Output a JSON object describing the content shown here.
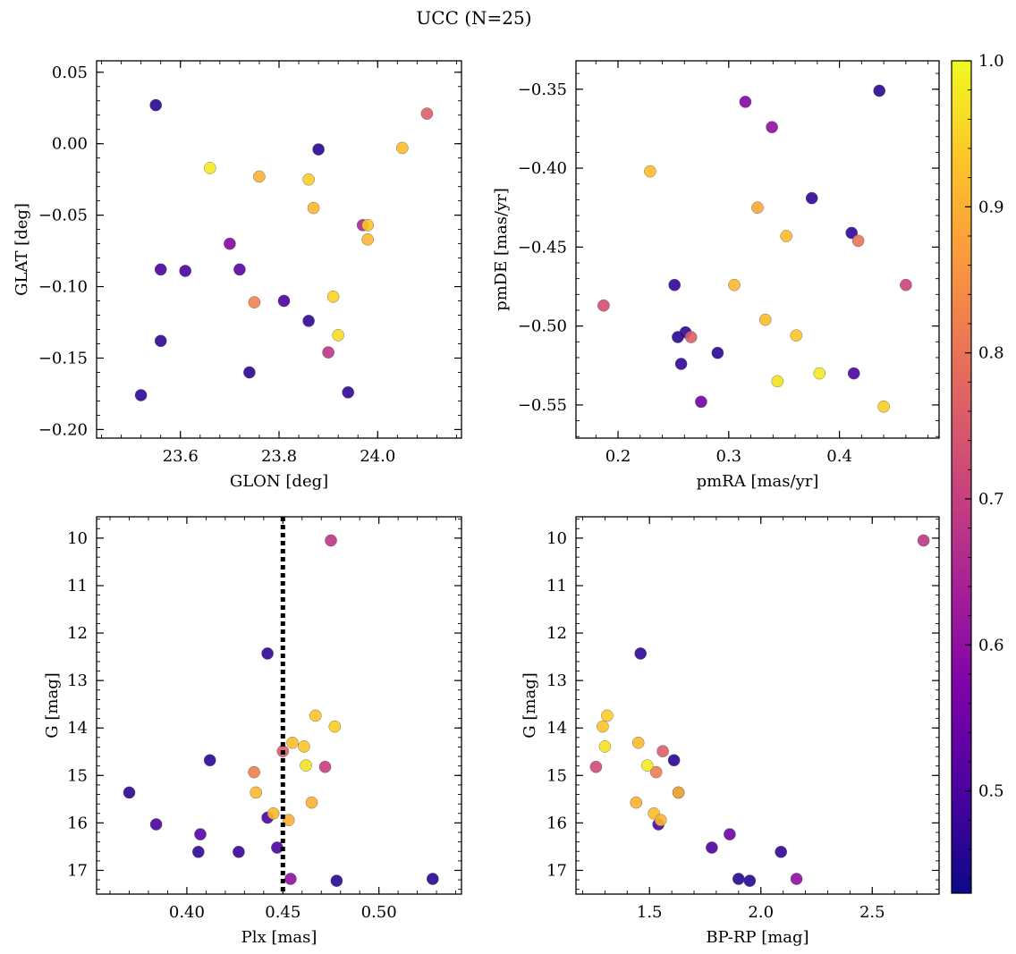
{
  "figure": {
    "title": "UCC (N=25)"
  },
  "colorbar": {
    "min": 0.43,
    "max": 1.0,
    "ticks": [
      0.5,
      0.6,
      0.7,
      0.8,
      0.9,
      1.0
    ],
    "tick_labels": [
      "0.5",
      "0.6",
      "0.7",
      "0.8",
      "0.9",
      "1.0"
    ],
    "colormap": "plasma"
  },
  "chart_data": [
    {
      "type": "scatter",
      "name": "sky",
      "xlabel": "GLON [deg]",
      "ylabel": "GLAT [deg]",
      "xlim": [
        23.43,
        24.17
      ],
      "ylim": [
        -0.206,
        0.058
      ],
      "y_inverted": false,
      "xticks": [
        23.6,
        23.8,
        24.0
      ],
      "xtick_labels": [
        "23.6",
        "23.8",
        "24.0"
      ],
      "yticks": [
        0.05,
        0.0,
        -0.05,
        -0.1,
        -0.15,
        -0.2
      ],
      "ytick_labels": [
        "0.05",
        "0.00",
        "−0.05",
        "−0.10",
        "−0.15",
        "−0.20"
      ],
      "x": [
        23.55,
        23.88,
        23.56,
        23.61,
        23.7,
        23.72,
        23.56,
        23.52,
        23.74,
        23.81,
        23.86,
        23.94,
        23.97,
        24.1,
        23.9,
        23.75,
        23.66,
        23.76,
        23.86,
        23.87,
        23.98,
        23.98,
        24.05,
        23.91,
        23.92
      ],
      "y": [
        0.027,
        -0.004,
        -0.088,
        -0.089,
        -0.07,
        -0.088,
        -0.138,
        -0.176,
        -0.16,
        -0.11,
        -0.124,
        -0.174,
        -0.057,
        0.021,
        -0.146,
        -0.111,
        -0.017,
        -0.023,
        -0.025,
        -0.045,
        -0.057,
        -0.067,
        -0.003,
        -0.107,
        -0.134
      ],
      "c": [
        0.46,
        0.46,
        0.5,
        0.5,
        0.58,
        0.52,
        0.47,
        0.47,
        0.46,
        0.5,
        0.47,
        0.47,
        0.65,
        0.76,
        0.68,
        0.83,
        0.98,
        0.9,
        0.94,
        0.91,
        0.93,
        0.91,
        0.92,
        0.95,
        0.96
      ]
    },
    {
      "type": "scatter",
      "name": "proper-motion",
      "xlabel": "pmRA [mas/yr]",
      "ylabel": "pmDE [mas/yr]",
      "xlim": [
        0.162,
        0.49
      ],
      "ylim": [
        -0.571,
        -0.332
      ],
      "y_inverted": false,
      "xticks": [
        0.2,
        0.3,
        0.4
      ],
      "xtick_labels": [
        "0.2",
        "0.3",
        "0.4"
      ],
      "yticks": [
        -0.35,
        -0.4,
        -0.45,
        -0.5,
        -0.55
      ],
      "ytick_labels": [
        "−0.35",
        "−0.40",
        "−0.45",
        "−0.50",
        "−0.55"
      ],
      "x": [
        0.436,
        0.315,
        0.339,
        0.375,
        0.411,
        0.251,
        0.254,
        0.261,
        0.257,
        0.29,
        0.275,
        0.413,
        0.187,
        0.266,
        0.417,
        0.46,
        0.229,
        0.326,
        0.352,
        0.305,
        0.333,
        0.361,
        0.382,
        0.344,
        0.44
      ],
      "y": [
        -0.351,
        -0.358,
        -0.374,
        -0.419,
        -0.441,
        -0.474,
        -0.507,
        -0.504,
        -0.524,
        -0.517,
        -0.548,
        -0.53,
        -0.487,
        -0.507,
        -0.446,
        -0.474,
        -0.402,
        -0.425,
        -0.443,
        -0.474,
        -0.496,
        -0.506,
        -0.53,
        -0.535,
        -0.551
      ],
      "c": [
        0.46,
        0.58,
        0.6,
        0.47,
        0.47,
        0.47,
        0.46,
        0.47,
        0.47,
        0.46,
        0.55,
        0.5,
        0.73,
        0.76,
        0.8,
        0.71,
        0.92,
        0.89,
        0.92,
        0.91,
        0.92,
        0.93,
        0.98,
        0.97,
        0.94
      ]
    },
    {
      "type": "scatter",
      "name": "parallax-magnitude",
      "xlabel": "Plx [mas]",
      "ylabel": "G [mag]",
      "xlim": [
        0.353,
        0.543
      ],
      "ylim": [
        9.55,
        17.5
      ],
      "y_inverted": true,
      "vline": {
        "x": 0.45,
        "style": "dotted",
        "color": "#000000"
      },
      "xticks": [
        0.4,
        0.45,
        0.5
      ],
      "xtick_labels": [
        "0.40",
        "0.45",
        "0.50"
      ],
      "yticks": [
        10,
        11,
        12,
        13,
        14,
        15,
        16,
        17
      ],
      "ytick_labels": [
        "10",
        "11",
        "12",
        "13",
        "14",
        "15",
        "16",
        "17"
      ],
      "x": [
        0.475,
        0.442,
        0.412,
        0.37,
        0.384,
        0.407,
        0.406,
        0.427,
        0.442,
        0.447,
        0.478,
        0.528,
        0.472,
        0.45,
        0.435,
        0.454,
        0.453,
        0.467,
        0.477,
        0.455,
        0.461,
        0.462,
        0.436,
        0.445,
        0.465
      ],
      "y": [
        10.05,
        12.43,
        14.68,
        15.36,
        16.03,
        16.24,
        16.61,
        16.61,
        15.89,
        16.52,
        17.22,
        17.18,
        14.82,
        14.49,
        14.93,
        17.18,
        15.94,
        13.74,
        13.97,
        14.31,
        14.39,
        14.79,
        15.36,
        15.8,
        15.57
      ],
      "c": [
        0.68,
        0.47,
        0.46,
        0.46,
        0.5,
        0.52,
        0.47,
        0.48,
        0.5,
        0.5,
        0.46,
        0.46,
        0.7,
        0.76,
        0.82,
        0.6,
        0.9,
        0.93,
        0.94,
        0.92,
        0.93,
        0.97,
        0.91,
        0.91,
        0.9
      ]
    },
    {
      "type": "scatter",
      "name": "color-magnitude",
      "xlabel": "BP-RP [mag]",
      "ylabel": "G [mag]",
      "xlim": [
        1.17,
        2.8
      ],
      "ylim": [
        9.55,
        17.5
      ],
      "y_inverted": true,
      "xticks": [
        1.5,
        2.0,
        2.5
      ],
      "xtick_labels": [
        "1.5",
        "2.0",
        "2.5"
      ],
      "yticks": [
        10,
        11,
        12,
        13,
        14,
        15,
        16,
        17
      ],
      "ytick_labels": [
        "10",
        "11",
        "12",
        "13",
        "14",
        "15",
        "16",
        "17"
      ],
      "x": [
        2.73,
        1.46,
        1.61,
        1.54,
        1.78,
        1.86,
        1.9,
        1.95,
        2.09,
        2.16,
        1.26,
        1.56,
        1.53,
        1.63,
        1.29,
        1.31,
        1.3,
        1.45,
        1.49,
        1.44,
        1.52,
        1.55,
        1.63
      ],
      "y": [
        10.05,
        12.43,
        14.68,
        16.03,
        16.52,
        16.24,
        17.18,
        17.22,
        16.61,
        17.18,
        14.82,
        14.49,
        14.93,
        15.36,
        13.97,
        13.74,
        14.39,
        14.31,
        14.79,
        15.57,
        15.8,
        15.94,
        15.36
      ],
      "c": [
        0.68,
        0.47,
        0.46,
        0.5,
        0.5,
        0.55,
        0.46,
        0.46,
        0.47,
        0.6,
        0.72,
        0.76,
        0.82,
        0.48,
        0.93,
        0.94,
        0.97,
        0.91,
        0.98,
        0.9,
        0.92,
        0.91,
        0.91
      ]
    }
  ]
}
